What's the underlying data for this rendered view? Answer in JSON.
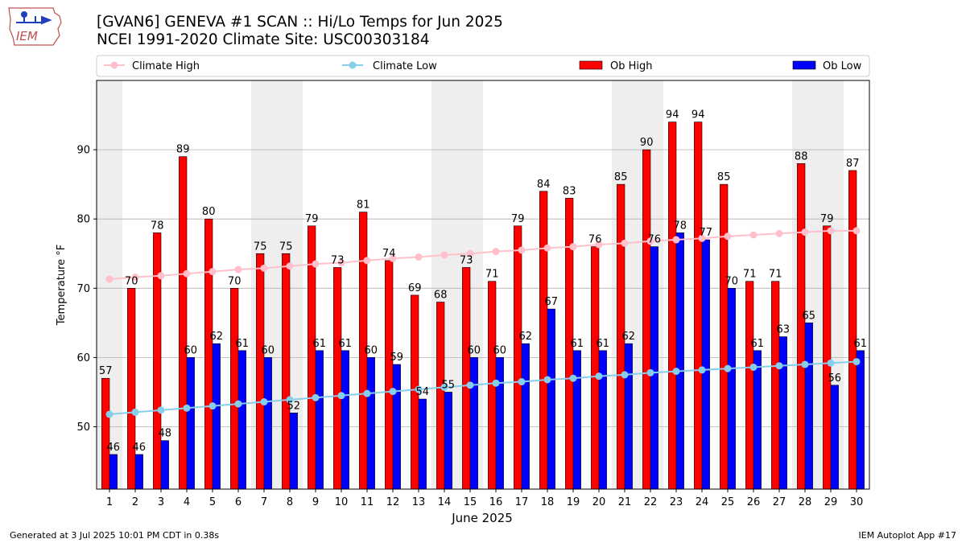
{
  "logo": {
    "text": "IEM"
  },
  "header": {
    "title_line1": "[GVAN6] GENEVA #1 SCAN :: Hi/Lo Temps for Jun 2025",
    "title_line2": "NCEI 1991-2020 Climate Site: USC00303184"
  },
  "footer": {
    "generated": "Generated at 3 Jul 2025 10:01 PM CDT in 0.38s",
    "app": "IEM Autoplot App #17"
  },
  "colors": {
    "ob_high": "#ff0000",
    "ob_low": "#0000ff",
    "climate_high": "#ffc0cb",
    "climate_low": "#87ceeb",
    "weekend_band": "#eeeeee"
  },
  "chart_data": {
    "type": "bar",
    "title": "[GVAN6] GENEVA #1 SCAN :: Hi/Lo Temps for Jun 2025",
    "xlabel": "June 2025",
    "ylabel": "Temperature °F",
    "ylim": [
      41,
      100
    ],
    "yticks": [
      50,
      60,
      70,
      80,
      90
    ],
    "grid": true,
    "legend_position": "top",
    "categories": [
      "1",
      "2",
      "3",
      "4",
      "5",
      "6",
      "7",
      "8",
      "9",
      "10",
      "11",
      "12",
      "13",
      "14",
      "15",
      "16",
      "17",
      "18",
      "19",
      "20",
      "21",
      "22",
      "23",
      "24",
      "25",
      "26",
      "27",
      "28",
      "29",
      "30"
    ],
    "shaded_days": [
      1,
      7,
      8,
      14,
      15,
      21,
      22,
      28,
      29
    ],
    "series": [
      {
        "name": "Ob High",
        "kind": "bar",
        "values": [
          57,
          70,
          78,
          89,
          80,
          70,
          75,
          75,
          79,
          73,
          81,
          74,
          69,
          68,
          73,
          71,
          79,
          84,
          83,
          76,
          85,
          90,
          94,
          94,
          85,
          71,
          71,
          88,
          79,
          87
        ]
      },
      {
        "name": "Ob Low",
        "kind": "bar",
        "values": [
          46,
          46,
          48,
          60,
          62,
          61,
          60,
          52,
          61,
          61,
          60,
          59,
          54,
          55,
          60,
          60,
          62,
          67,
          61,
          61,
          62,
          76,
          78,
          77,
          70,
          61,
          63,
          65,
          56,
          61
        ]
      },
      {
        "name": "Climate High",
        "kind": "line",
        "values": [
          71.3,
          71.6,
          71.8,
          72.1,
          72.4,
          72.7,
          72.9,
          73.2,
          73.5,
          73.7,
          74.0,
          74.3,
          74.5,
          74.8,
          75.0,
          75.3,
          75.5,
          75.8,
          76.0,
          76.3,
          76.5,
          76.8,
          77.0,
          77.2,
          77.5,
          77.7,
          77.9,
          78.1,
          78.3,
          78.3
        ]
      },
      {
        "name": "Climate Low",
        "kind": "line",
        "values": [
          51.8,
          52.1,
          52.4,
          52.7,
          53.0,
          53.3,
          53.6,
          53.9,
          54.2,
          54.5,
          54.8,
          55.1,
          55.4,
          55.7,
          56.0,
          56.3,
          56.5,
          56.8,
          57.0,
          57.3,
          57.5,
          57.8,
          58.0,
          58.2,
          58.4,
          58.6,
          58.8,
          59.0,
          59.2,
          59.4
        ]
      }
    ]
  }
}
